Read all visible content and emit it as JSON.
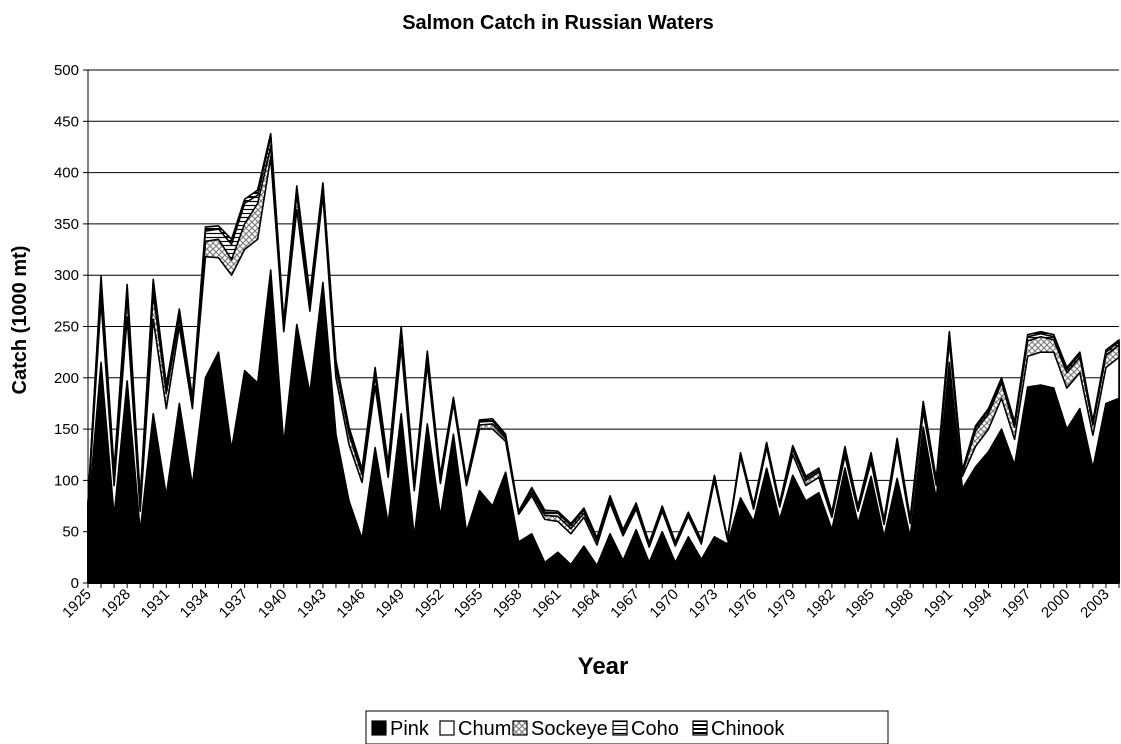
{
  "chart_data": {
    "type": "area",
    "stacked": true,
    "title": "Salmon Catch in Russian Waters",
    "xlabel": "Year",
    "ylabel": "Catch (1000 mt)",
    "ylim": [
      0,
      500
    ],
    "yticks": [
      0,
      50,
      100,
      150,
      200,
      250,
      300,
      350,
      400,
      450,
      500
    ],
    "xlim": [
      1925,
      2004
    ],
    "xtick_labels": [
      "1925",
      "1928",
      "1931",
      "1934",
      "1937",
      "1940",
      "1943",
      "1946",
      "1949",
      "1952",
      "1955",
      "1958",
      "1961",
      "1964",
      "1967",
      "1970",
      "1973",
      "1976",
      "1979",
      "1982",
      "1985",
      "1988",
      "1991",
      "1994",
      "1997",
      "2000",
      "2003"
    ],
    "grid": "horizontal",
    "legend_position": "bottom",
    "colors": {
      "pink": "#000000",
      "chum": "#ffffff",
      "sockeye_hatch": "#808080",
      "outline": "#000000",
      "grid": "#000000"
    },
    "x": [
      1925,
      1926,
      1927,
      1928,
      1929,
      1930,
      1931,
      1932,
      1933,
      1934,
      1935,
      1936,
      1937,
      1938,
      1939,
      1940,
      1941,
      1942,
      1943,
      1944,
      1945,
      1946,
      1947,
      1948,
      1949,
      1950,
      1951,
      1952,
      1953,
      1954,
      1955,
      1956,
      1957,
      1958,
      1959,
      1960,
      1961,
      1962,
      1963,
      1964,
      1965,
      1966,
      1967,
      1968,
      1969,
      1970,
      1971,
      1972,
      1973,
      1974,
      1975,
      1976,
      1977,
      1978,
      1979,
      1980,
      1981,
      1982,
      1983,
      1984,
      1985,
      1986,
      1987,
      1988,
      1989,
      1990,
      1991,
      1992,
      1993,
      1994,
      1995,
      1996,
      1997,
      1998,
      1999,
      2000,
      2001,
      2002,
      2003,
      2004
    ],
    "series": [
      {
        "name": "Pink",
        "values": [
          65,
          215,
          65,
          197,
          50,
          165,
          85,
          175,
          95,
          200,
          225,
          130,
          207,
          195,
          305,
          135,
          252,
          185,
          293,
          145,
          80,
          43,
          132,
          58,
          165,
          45,
          155,
          65,
          145,
          50,
          90,
          75,
          108,
          40,
          48,
          20,
          30,
          18,
          36,
          17,
          48,
          22,
          52,
          20,
          50,
          20,
          45,
          23,
          45,
          38,
          83,
          60,
          112,
          62,
          105,
          80,
          88,
          52,
          112,
          58,
          104,
          45,
          102,
          45,
          152,
          82,
          215,
          92,
          113,
          128,
          150,
          115,
          191,
          193,
          190,
          150,
          170,
          112,
          175,
          180
        ]
      },
      {
        "name": "Chum",
        "values": [
          10,
          60,
          30,
          62,
          20,
          92,
          85,
          75,
          75,
          118,
          92,
          170,
          118,
          140,
          110,
          110,
          112,
          80,
          85,
          55,
          55,
          55,
          60,
          45,
          65,
          45,
          58,
          32,
          30,
          45,
          60,
          75,
          30,
          27,
          37,
          42,
          30,
          30,
          28,
          20,
          30,
          24,
          20,
          15,
          20,
          16,
          20,
          15,
          55,
          4,
          40,
          12,
          20,
          12,
          20,
          15,
          15,
          12,
          12,
          12,
          14,
          12,
          30,
          13,
          15,
          13,
          20,
          12,
          20,
          22,
          30,
          25,
          30,
          32,
          35,
          40,
          35,
          32,
          35,
          40
        ]
      },
      {
        "name": "Sockeye",
        "values": [
          2,
          15,
          10,
          20,
          8,
          25,
          15,
          8,
          5,
          15,
          18,
          15,
          25,
          35,
          10,
          5,
          15,
          8,
          5,
          10,
          10,
          8,
          10,
          8,
          12,
          5,
          8,
          5,
          4,
          2,
          4,
          5,
          3,
          1,
          3,
          4,
          5,
          5,
          4,
          4,
          3,
          3,
          3,
          2,
          2,
          2,
          2,
          2,
          3,
          1,
          2,
          2,
          3,
          2,
          5,
          5,
          5,
          3,
          5,
          3,
          5,
          3,
          5,
          3,
          5,
          3,
          5,
          3,
          15,
          15,
          15,
          12,
          15,
          15,
          12,
          15,
          15,
          10,
          12,
          12
        ]
      },
      {
        "name": "Coho",
        "values": [
          1,
          5,
          3,
          8,
          3,
          10,
          5,
          6,
          4,
          10,
          10,
          15,
          20,
          8,
          10,
          3,
          5,
          5,
          5,
          5,
          5,
          3,
          5,
          3,
          5,
          2,
          3,
          2,
          1,
          2,
          3,
          3,
          2,
          1,
          3,
          3,
          3,
          3,
          3,
          2,
          3,
          2,
          2,
          1,
          2,
          1,
          1,
          1,
          1,
          0,
          1,
          1,
          1,
          1,
          2,
          2,
          2,
          1,
          2,
          1,
          2,
          1,
          2,
          1,
          3,
          2,
          3,
          2,
          3,
          3,
          3,
          3,
          4,
          3,
          3,
          3,
          3,
          2,
          3,
          3
        ]
      },
      {
        "name": "Chinook",
        "values": [
          1,
          4,
          2,
          4,
          2,
          4,
          3,
          3,
          2,
          4,
          3,
          5,
          4,
          5,
          3,
          2,
          3,
          3,
          2,
          2,
          2,
          2,
          3,
          2,
          3,
          2,
          2,
          1,
          1,
          1,
          2,
          2,
          2,
          1,
          2,
          2,
          2,
          2,
          2,
          1,
          1,
          1,
          1,
          1,
          1,
          1,
          1,
          1,
          1,
          0,
          1,
          1,
          1,
          1,
          2,
          2,
          2,
          1,
          2,
          1,
          2,
          1,
          2,
          1,
          2,
          1,
          2,
          1,
          2,
          2,
          2,
          2,
          2,
          2,
          2,
          2,
          2,
          2,
          2,
          2
        ]
      }
    ]
  }
}
